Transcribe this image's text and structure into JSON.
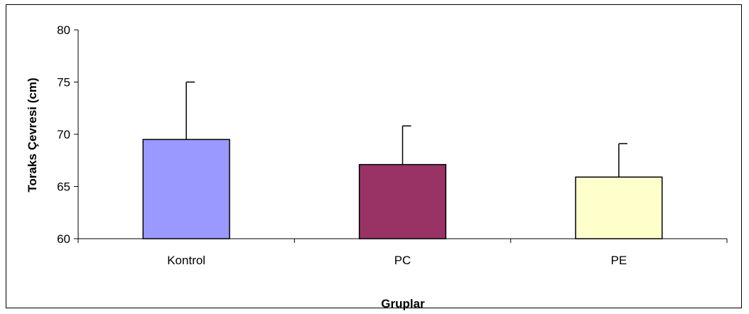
{
  "chart_data": {
    "type": "bar",
    "title": "",
    "xlabel": "Gruplar",
    "ylabel": "Toraks Çevresi (cm)",
    "ylim": [
      60,
      80
    ],
    "yticks": [
      60,
      65,
      70,
      75,
      80
    ],
    "categories": [
      "Kontrol",
      "PC",
      "PE"
    ],
    "values": [
      69.5,
      67.1,
      65.9
    ],
    "error_upper": [
      75.0,
      70.8,
      69.1
    ],
    "colors": [
      "#9999FF",
      "#993366",
      "#FFFFCC"
    ],
    "grid": false,
    "legend": "none"
  }
}
